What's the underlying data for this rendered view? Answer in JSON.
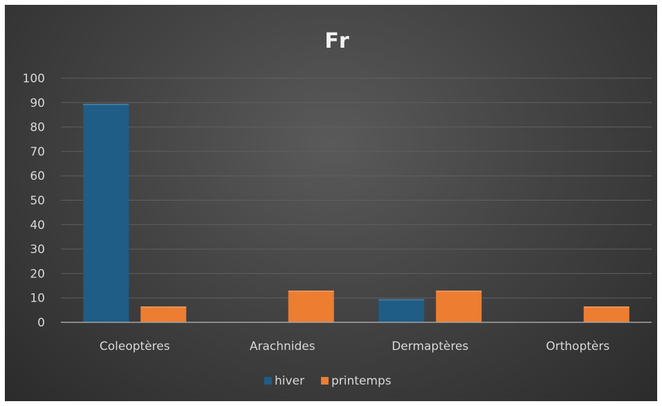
{
  "chart_data": {
    "type": "bar",
    "title": "Fr",
    "xlabel": "",
    "ylabel": "",
    "categories": [
      "Coleoptères",
      "Arachnides",
      "Dermaptères",
      "Orthoptèrs"
    ],
    "series": [
      {
        "name": "hiver",
        "values": [
          89.5,
          0,
          9.5,
          0
        ],
        "color": "#1f5c86"
      },
      {
        "name": "printemps",
        "values": [
          6.5,
          13,
          13,
          6.5
        ],
        "color": "#ed7d31"
      }
    ],
    "ylim": [
      0,
      100
    ],
    "yticks": [
      "0",
      "10",
      "20",
      "30",
      "40",
      "50",
      "60",
      "70",
      "80",
      "90",
      "100"
    ],
    "grid": true,
    "legend": "bottom"
  }
}
